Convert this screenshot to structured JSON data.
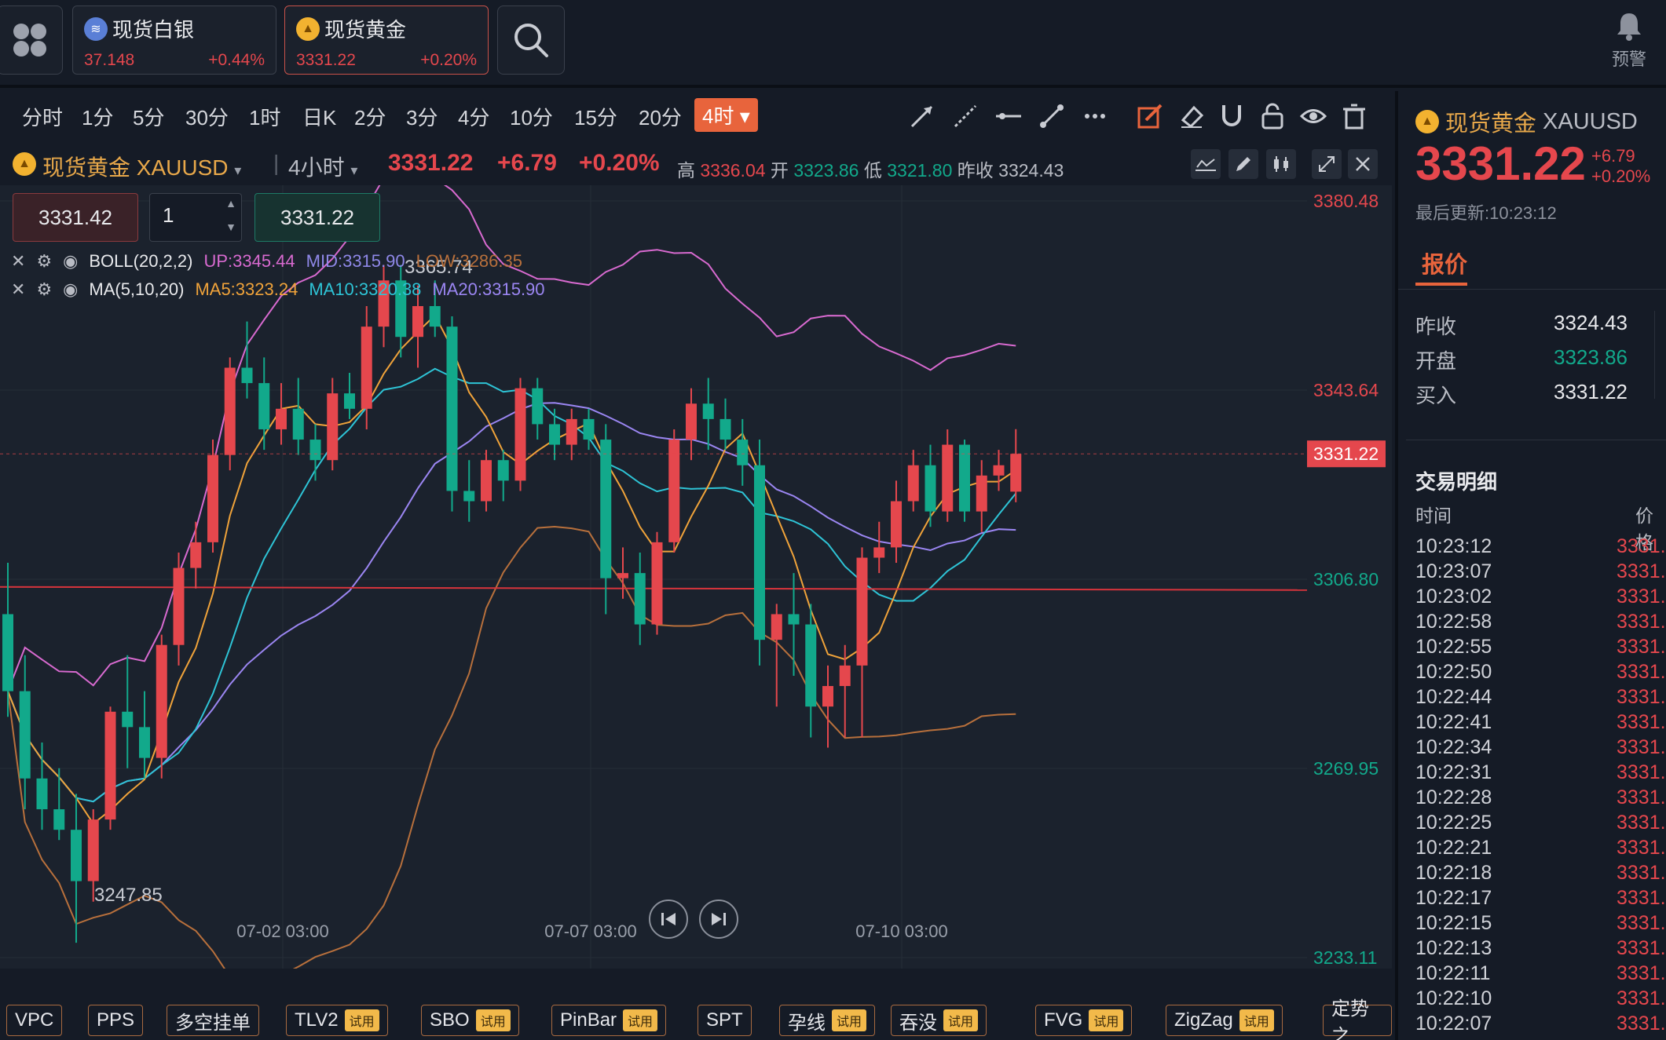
{
  "header": {
    "apps_icon": "grid-icon",
    "tickers": [
      {
        "name": "现货白银",
        "price": "37.148",
        "change": "+0.44%"
      },
      {
        "name": "现货黄金",
        "price": "3331.22",
        "change": "+0.20%"
      }
    ],
    "alert_label": "预警"
  },
  "timeframes": [
    "分时",
    "1分",
    "5分",
    "30分",
    "1时",
    "日K",
    "2分",
    "3分",
    "4分",
    "10分",
    "15分",
    "20分",
    "4时"
  ],
  "active_timeframe": "4时",
  "info": {
    "symbol": "现货黄金 XAUUSD",
    "interval": "4小时",
    "price": "3331.22",
    "change": "+6.79",
    "change_pct": "+0.20%",
    "high_label": "高",
    "high": "3336.04",
    "open_label": "开",
    "open": "3323.86",
    "low_label": "低",
    "low": "3321.80",
    "prev_label": "昨收",
    "prev": "3324.43"
  },
  "order": {
    "sell": "3331.42",
    "qty": "1",
    "buy": "3331.22"
  },
  "indicators": {
    "boll": {
      "name": "BOLL(20,2,2)",
      "up": "UP:3345.44",
      "mid": "MID:3315.90",
      "low": "LOW:3286.35"
    },
    "ma": {
      "name": "MA(5,10,20)",
      "ma5": "MA5:3323.24",
      "ma10": "MA10:3320.38",
      "ma20": "MA20:3315.90"
    }
  },
  "chart_data": {
    "type": "candlestick",
    "price_ticks": [
      "3380.48",
      "3343.64",
      "3306.80",
      "3269.95",
      "3233.11"
    ],
    "current_price_label": "3331.22",
    "x_ticks": [
      "07-02 03:00",
      "07-07 03:00",
      "07-10 03:00"
    ],
    "annotations": [
      "3365.74",
      "3247.85"
    ],
    "ylim": [
      3233.11,
      3380.48
    ],
    "candles": [
      [
        3300,
        3310,
        3280,
        3285
      ],
      [
        3285,
        3292,
        3262,
        3268
      ],
      [
        3268,
        3275,
        3258,
        3262
      ],
      [
        3262,
        3270,
        3256,
        3258
      ],
      [
        3258,
        3265,
        3236,
        3248
      ],
      [
        3248,
        3262,
        3244,
        3260
      ],
      [
        3260,
        3282,
        3258,
        3281
      ],
      [
        3281,
        3292,
        3270,
        3278
      ],
      [
        3278,
        3285,
        3268,
        3272
      ],
      [
        3272,
        3296,
        3268,
        3294
      ],
      [
        3294,
        3312,
        3290,
        3309
      ],
      [
        3309,
        3318,
        3305,
        3314
      ],
      [
        3314,
        3334,
        3312,
        3331
      ],
      [
        3331,
        3350,
        3328,
        3348
      ],
      [
        3348,
        3357,
        3342,
        3345
      ],
      [
        3345,
        3350,
        3332,
        3336
      ],
      [
        3336,
        3345,
        3333,
        3340
      ],
      [
        3340,
        3346,
        3331,
        3334
      ],
      [
        3334,
        3337,
        3326,
        3330
      ],
      [
        3330,
        3346,
        3328,
        3343
      ],
      [
        3343,
        3347,
        3338,
        3340
      ],
      [
        3340,
        3360,
        3336,
        3356
      ],
      [
        3356,
        3368,
        3352,
        3365
      ],
      [
        3365,
        3368,
        3350,
        3354
      ],
      [
        3354,
        3364,
        3348,
        3360
      ],
      [
        3360,
        3365,
        3354,
        3356
      ],
      [
        3356,
        3358,
        3320,
        3324
      ],
      [
        3324,
        3330,
        3318,
        3322
      ],
      [
        3322,
        3332,
        3320,
        3330
      ],
      [
        3330,
        3332,
        3322,
        3326
      ],
      [
        3326,
        3346,
        3324,
        3344
      ],
      [
        3344,
        3346,
        3334,
        3337
      ],
      [
        3337,
        3340,
        3330,
        3333
      ],
      [
        3333,
        3340,
        3330,
        3338
      ],
      [
        3338,
        3340,
        3332,
        3334
      ],
      [
        3334,
        3337,
        3300,
        3307
      ],
      [
        3307,
        3313,
        3303,
        3308
      ],
      [
        3308,
        3312,
        3294,
        3298
      ],
      [
        3298,
        3316,
        3296,
        3314
      ],
      [
        3314,
        3336,
        3312,
        3334
      ],
      [
        3334,
        3344,
        3330,
        3341
      ],
      [
        3341,
        3346,
        3332,
        3338
      ],
      [
        3338,
        3342,
        3332,
        3334
      ],
      [
        3334,
        3338,
        3325,
        3329
      ],
      [
        3329,
        3334,
        3290,
        3295
      ],
      [
        3295,
        3302,
        3282,
        3300
      ],
      [
        3300,
        3308,
        3288,
        3298
      ],
      [
        3298,
        3302,
        3276,
        3282
      ],
      [
        3282,
        3290,
        3274,
        3286
      ],
      [
        3286,
        3294,
        3276,
        3290
      ],
      [
        3290,
        3313,
        3276,
        3311
      ],
      [
        3311,
        3318,
        3308,
        3313
      ],
      [
        3313,
        3326,
        3310,
        3322
      ],
      [
        3322,
        3332,
        3320,
        3329
      ],
      [
        3329,
        3333,
        3317,
        3320
      ],
      [
        3320,
        3336,
        3318,
        3333
      ],
      [
        3333,
        3334,
        3318,
        3320
      ],
      [
        3320,
        3330,
        3316,
        3327
      ],
      [
        3327,
        3332,
        3324,
        3329
      ],
      [
        3323.86,
        3336.04,
        3321.8,
        3331.22
      ]
    ],
    "horizontal_line": 3305
  },
  "playback": {
    "prev_icon": "skip-back-icon",
    "next_icon": "skip-forward-icon"
  },
  "bottom_indicators": [
    {
      "name": "VPC",
      "trial": ""
    },
    {
      "name": "PPS",
      "trial": ""
    },
    {
      "name": "多空挂单",
      "trial": ""
    },
    {
      "name": "TLV2",
      "trial": "试用"
    },
    {
      "name": "SBO",
      "trial": "试用"
    },
    {
      "name": "PinBar",
      "trial": "试用"
    },
    {
      "name": "SPT",
      "trial": ""
    },
    {
      "name": "孕线",
      "trial": "试用"
    },
    {
      "name": "吞没",
      "trial": "试用"
    },
    {
      "name": "FVG",
      "trial": "试用"
    },
    {
      "name": "ZigZag",
      "trial": "试用"
    },
    {
      "name": "定势之",
      "trial": ""
    }
  ],
  "side": {
    "symbol": "现货黄金",
    "code": "XAUUSD",
    "price": "3331.22",
    "change": "+6.79",
    "change_pct": "+0.20%",
    "updated": "最后更新:10:23:12",
    "tab": "报价",
    "quote": [
      {
        "label": "昨收",
        "value": "3324.43"
      },
      {
        "label": "开盘",
        "value": "3323.86"
      },
      {
        "label": "买入",
        "value": "3331.22"
      }
    ],
    "trades_title": "交易明细",
    "col_time": "时间",
    "col_price": "价格",
    "trades": [
      {
        "time": "10:23:12",
        "price": "3331."
      },
      {
        "time": "10:23:07",
        "price": "3331."
      },
      {
        "time": "10:23:02",
        "price": "3331."
      },
      {
        "time": "10:22:58",
        "price": "3331."
      },
      {
        "time": "10:22:55",
        "price": "3331."
      },
      {
        "time": "10:22:50",
        "price": "3331."
      },
      {
        "time": "10:22:44",
        "price": "3331."
      },
      {
        "time": "10:22:41",
        "price": "3331."
      },
      {
        "time": "10:22:34",
        "price": "3331."
      },
      {
        "time": "10:22:31",
        "price": "3331."
      },
      {
        "time": "10:22:28",
        "price": "3331."
      },
      {
        "time": "10:22:25",
        "price": "3331."
      },
      {
        "time": "10:22:21",
        "price": "3331."
      },
      {
        "time": "10:22:18",
        "price": "3331."
      },
      {
        "time": "10:22:17",
        "price": "3331."
      },
      {
        "time": "10:22:15",
        "price": "3331."
      },
      {
        "time": "10:22:13",
        "price": "3331."
      },
      {
        "time": "10:22:11",
        "price": "3331."
      },
      {
        "time": "10:22:10",
        "price": "3331."
      },
      {
        "time": "10:22:07",
        "price": "3331."
      }
    ]
  },
  "colors": {
    "up": "#e5474d",
    "down": "#12a98b",
    "accent": "#e8643c"
  }
}
